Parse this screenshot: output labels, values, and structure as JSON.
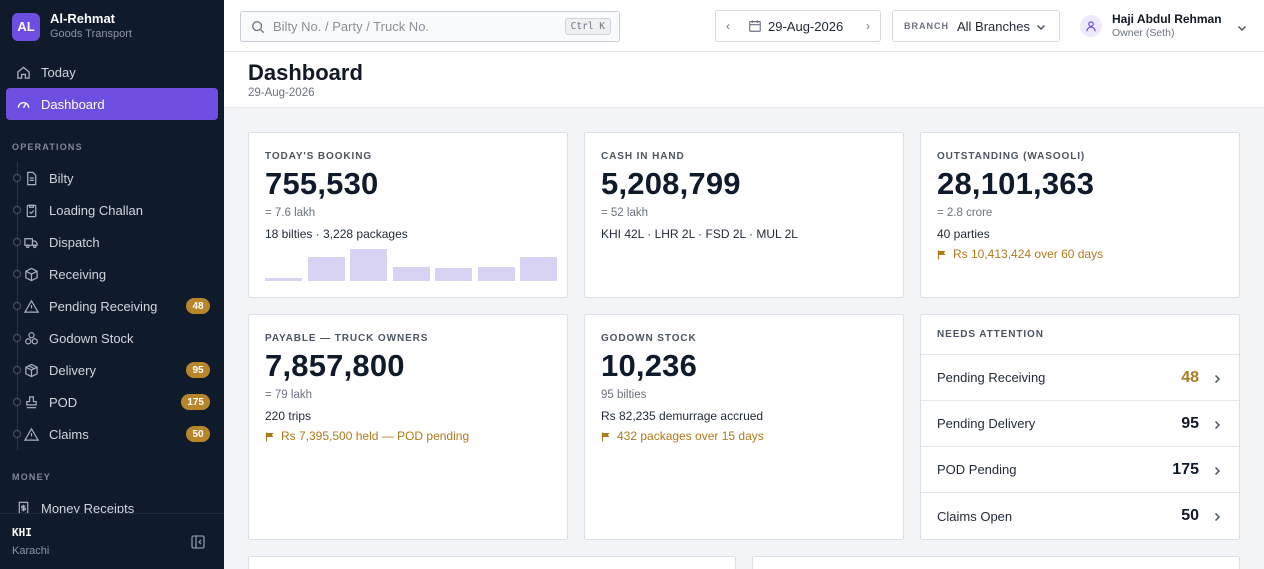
{
  "brand": {
    "initials": "AL",
    "name": "Al-Rehmat",
    "subtitle": "Goods Transport"
  },
  "nav_top": [
    {
      "label": "Today",
      "icon": "home-icon",
      "active": false
    },
    {
      "label": "Dashboard",
      "icon": "gauge-icon",
      "active": true
    }
  ],
  "sections": {
    "operations": "OPERATIONS",
    "money": "MONEY"
  },
  "operations": [
    {
      "label": "Bilty",
      "icon": "document-icon",
      "badge": ""
    },
    {
      "label": "Loading Challan",
      "icon": "clipboard-icon",
      "badge": ""
    },
    {
      "label": "Dispatch",
      "icon": "truck-icon",
      "badge": ""
    },
    {
      "label": "Receiving",
      "icon": "box-icon",
      "badge": ""
    },
    {
      "label": "Pending Receiving",
      "icon": "warning-icon",
      "badge": "48"
    },
    {
      "label": "Godown Stock",
      "icon": "boxes-icon",
      "badge": ""
    },
    {
      "label": "Delivery",
      "icon": "package-icon",
      "badge": "95"
    },
    {
      "label": "POD",
      "icon": "stamp-icon",
      "badge": "175"
    },
    {
      "label": "Claims",
      "icon": "alert-icon",
      "badge": "50"
    }
  ],
  "money": [
    {
      "label": "Money Receipts",
      "icon": "receipt-icon"
    }
  ],
  "footer": {
    "code": "KHI",
    "city": "Karachi"
  },
  "header": {
    "search_placeholder": "Bilty No. / Party / Truck No.",
    "search_shortcut": "Ctrl K",
    "date": "29-Aug-2026",
    "branch_label": "BRANCH",
    "branch_value": "All Branches",
    "user_name": "Haji Abdul Rehman",
    "user_role": "Owner (Seth)"
  },
  "page": {
    "title": "Dashboard",
    "date": "29-Aug-2026"
  },
  "cards": {
    "booking": {
      "label": "TODAY'S BOOKING",
      "value": "755,530",
      "line1": "= 7.6 lakh",
      "line2": "18 bilties · 3,228 packages",
      "sparkline": [
        0.1,
        0.75,
        1.0,
        0.45,
        0.4,
        0.45,
        0.75
      ]
    },
    "cash": {
      "label": "CASH IN HAND",
      "value": "5,208,799",
      "line1": "= 52 lakh",
      "line2": "KHI 42L · LHR 2L · FSD 2L · MUL 2L"
    },
    "outstanding": {
      "label": "OUTSTANDING (WASOOLI)",
      "value": "28,101,363",
      "line1": "= 2.8 crore",
      "line2": "40 parties",
      "line3": "Rs 10,413,424 over 60 days"
    },
    "payable": {
      "label": "PAYABLE — TRUCK OWNERS",
      "value": "7,857,800",
      "line1": "= 79 lakh",
      "line2": "220 trips",
      "line3": "Rs 7,395,500 held — POD pending"
    },
    "godown": {
      "label": "GODOWN STOCK",
      "value": "10,236",
      "line1": "95 bilties",
      "line2": "Rs 82,235 demurrage accrued",
      "line3": "432 packages over 15 days"
    }
  },
  "attention": {
    "title": "NEEDS ATTENTION",
    "rows": [
      {
        "label": "Pending Receiving",
        "count": "48",
        "warn": true
      },
      {
        "label": "Pending Delivery",
        "count": "95",
        "warn": false
      },
      {
        "label": "POD Pending",
        "count": "175",
        "warn": false
      },
      {
        "label": "Claims Open",
        "count": "50",
        "warn": false
      }
    ]
  },
  "colors": {
    "accent": "#6d4ee0",
    "sidebar": "#0f1a2b",
    "badge": "#b8862a",
    "warning_text": "#b07a1c"
  }
}
